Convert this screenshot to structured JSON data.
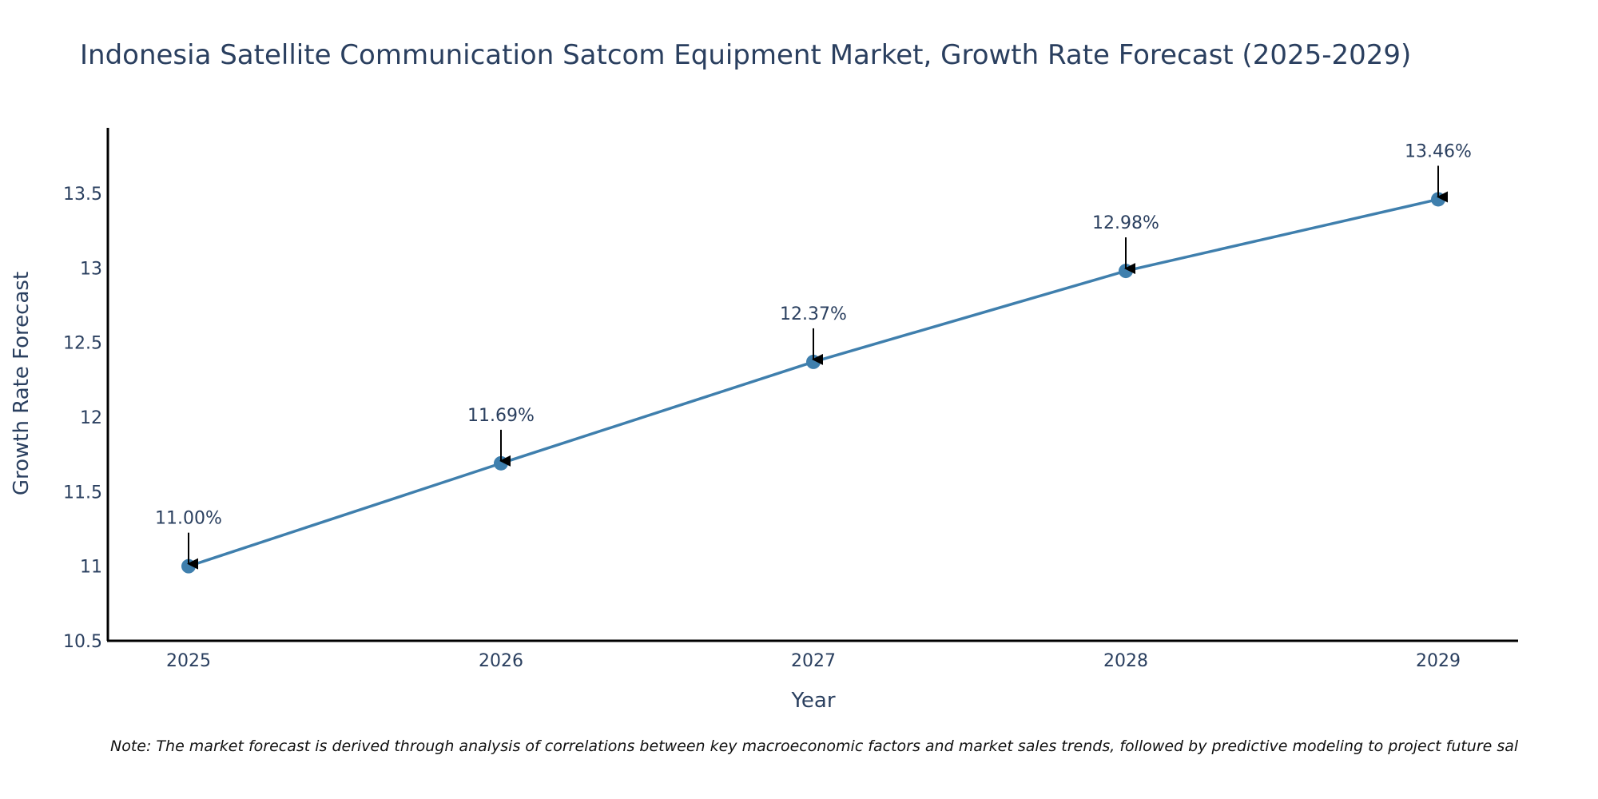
{
  "chart_data": {
    "type": "line",
    "title": "Indonesia Satellite Communication Satcom Equipment Market, Growth Rate Forecast (2025-2029)",
    "xlabel": "Year",
    "ylabel": "Growth Rate Forecast",
    "categories": [
      "2025",
      "2026",
      "2027",
      "2028",
      "2029"
    ],
    "values": [
      11.0,
      11.69,
      12.37,
      12.98,
      13.46
    ],
    "data_labels": [
      "11.00%",
      "11.69%",
      "12.37%",
      "12.98%",
      "13.46%"
    ],
    "ylim": [
      10.5,
      13.95
    ],
    "yticks": [
      10.5,
      11,
      11.5,
      12,
      12.5,
      13,
      13.5
    ],
    "ytick_labels": [
      "10.5",
      "11",
      "11.5",
      "12",
      "12.5",
      "13",
      "13.5"
    ],
    "grid": false,
    "line_color": "#3f7fad",
    "marker_color": "#3f7fad",
    "note": "Note: The market forecast is derived through analysis of correlations between key macroeconomic factors and market sales trends, followed by predictive modeling to project future sal"
  }
}
